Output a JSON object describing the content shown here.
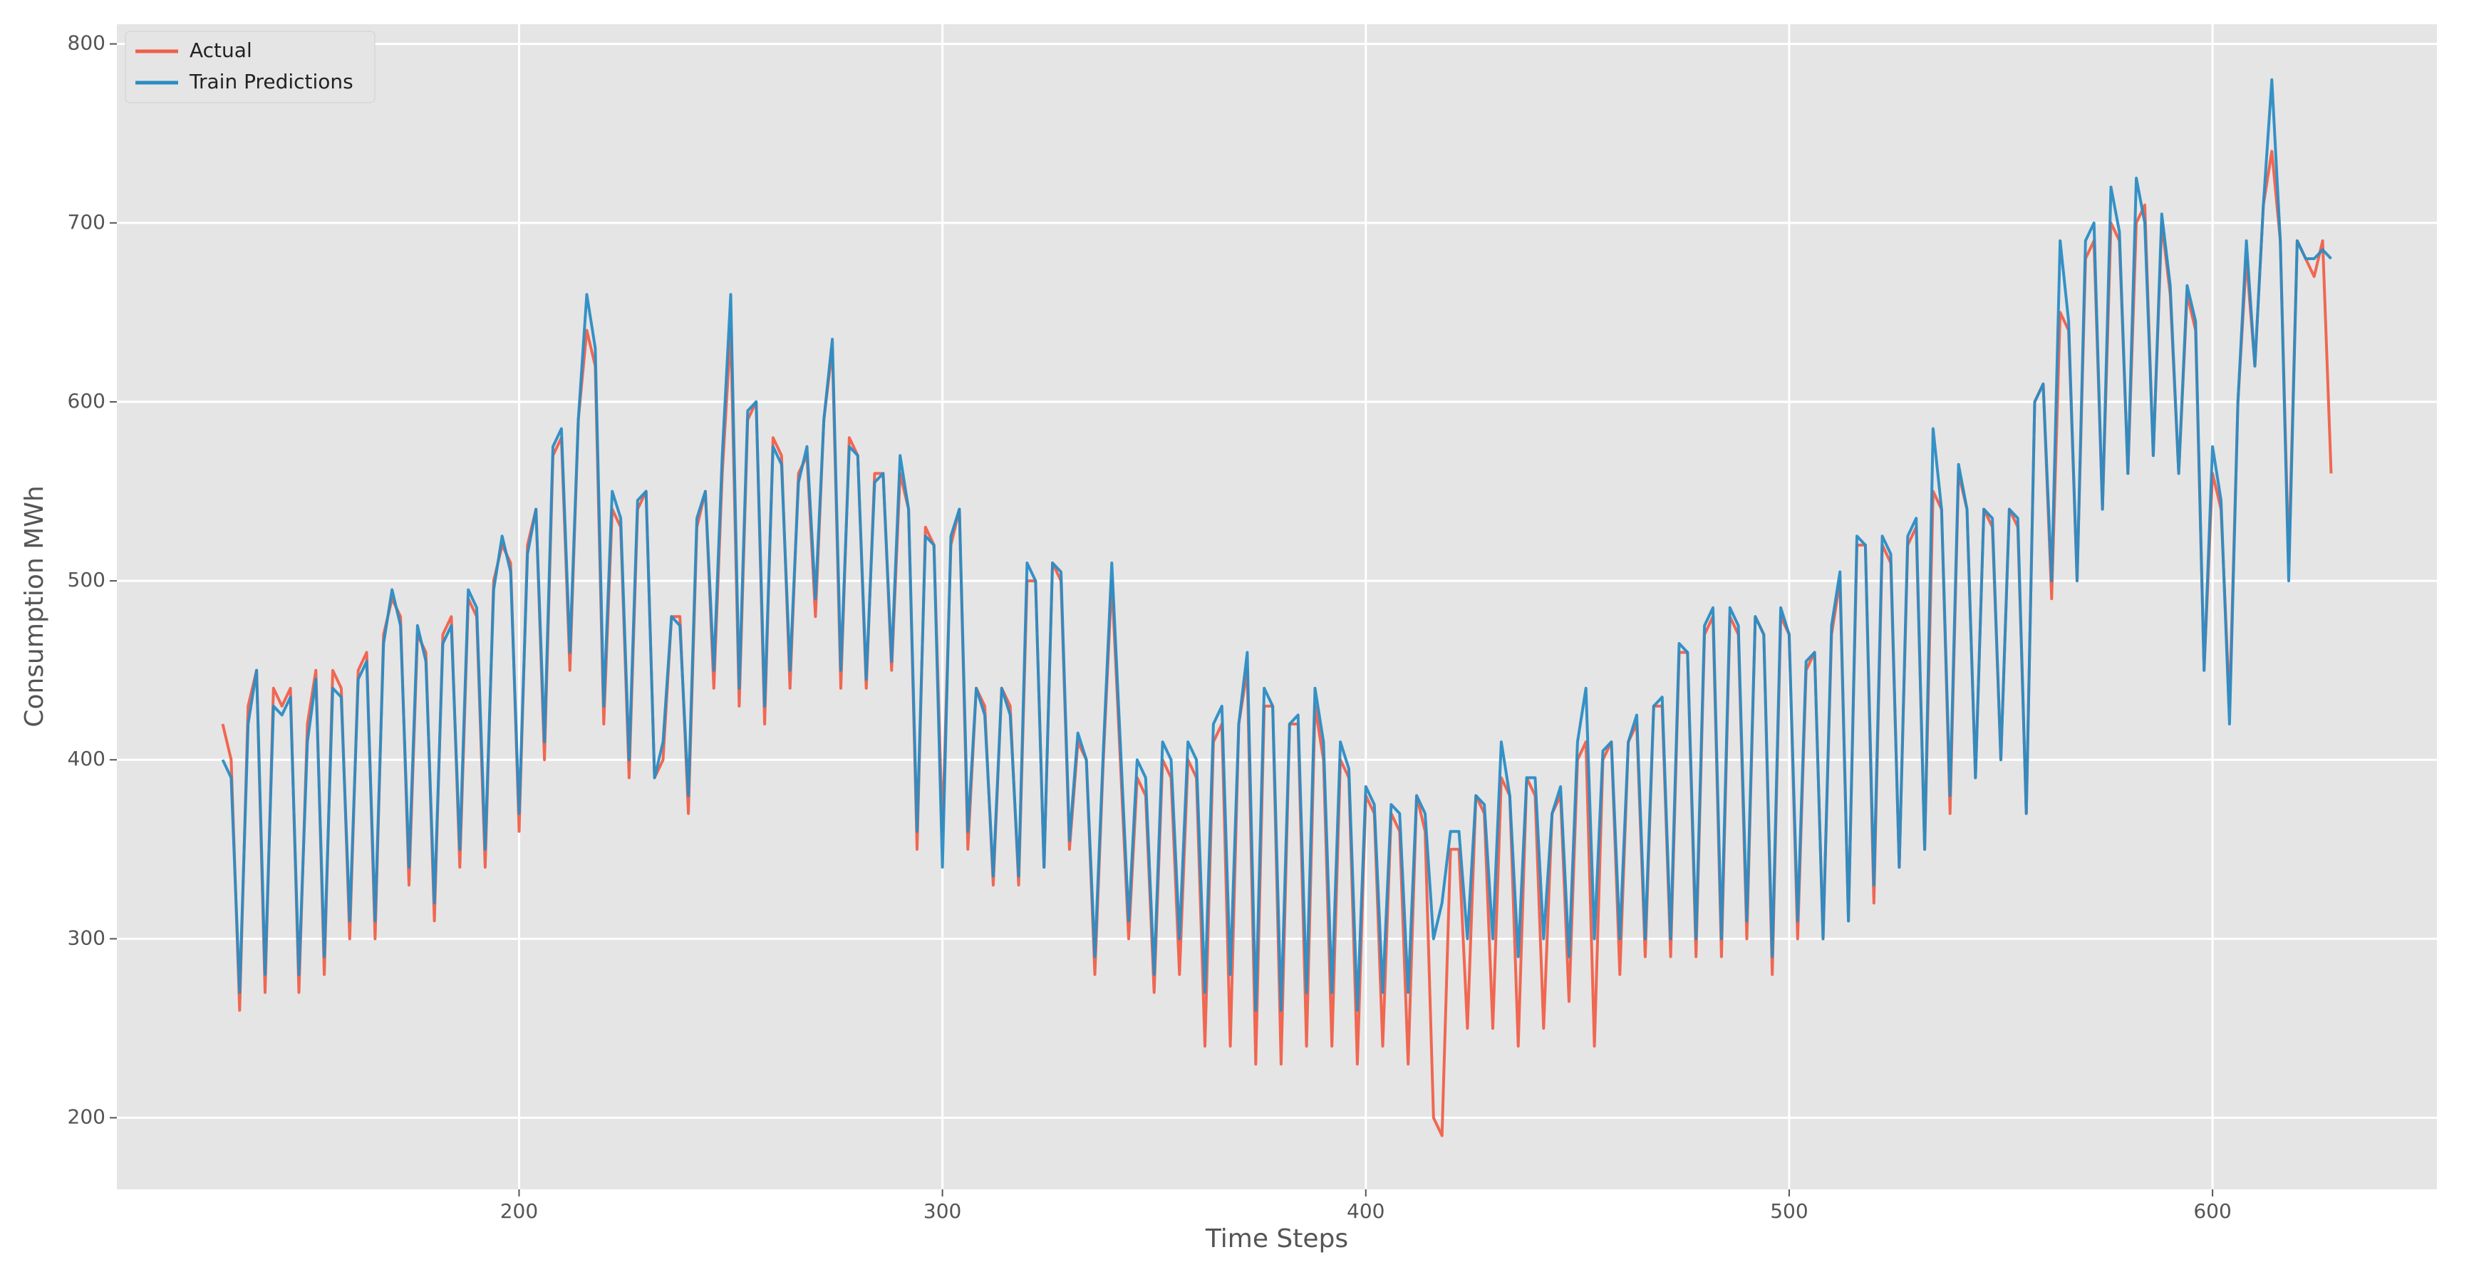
{
  "chart_data": {
    "type": "line",
    "x_label": "Time Steps",
    "y_label": "Consumption MWh",
    "xlim": [
      105,
      653
    ],
    "ylim": [
      160,
      811
    ],
    "xticks": [
      200,
      300,
      400,
      500,
      600
    ],
    "yticks": [
      200,
      300,
      400,
      500,
      600,
      700,
      800
    ],
    "grid": true,
    "legend": "upper left",
    "x": [
      130,
      132,
      134,
      136,
      138,
      140,
      142,
      144,
      146,
      148,
      150,
      152,
      154,
      156,
      158,
      160,
      162,
      164,
      166,
      168,
      170,
      172,
      174,
      176,
      178,
      180,
      182,
      184,
      186,
      188,
      190,
      192,
      194,
      196,
      198,
      200,
      202,
      204,
      206,
      208,
      210,
      212,
      214,
      216,
      218,
      220,
      222,
      224,
      226,
      228,
      230,
      232,
      234,
      236,
      238,
      240,
      242,
      244,
      246,
      248,
      250,
      252,
      254,
      256,
      258,
      260,
      262,
      264,
      266,
      268,
      270,
      272,
      274,
      276,
      278,
      280,
      282,
      284,
      286,
      288,
      290,
      292,
      294,
      296,
      298,
      300,
      302,
      304,
      306,
      308,
      310,
      312,
      314,
      316,
      318,
      320,
      322,
      324,
      326,
      328,
      330,
      332,
      334,
      336,
      338,
      340,
      342,
      344,
      346,
      348,
      350,
      352,
      354,
      356,
      358,
      360,
      362,
      364,
      366,
      368,
      370,
      372,
      374,
      376,
      378,
      380,
      382,
      384,
      386,
      388,
      390,
      392,
      394,
      396,
      398,
      400,
      402,
      404,
      406,
      408,
      410,
      412,
      414,
      416,
      418,
      420,
      422,
      424,
      426,
      428,
      430,
      432,
      434,
      436,
      438,
      440,
      442,
      444,
      446,
      448,
      450,
      452,
      454,
      456,
      458,
      460,
      462,
      464,
      466,
      468,
      470,
      472,
      474,
      476,
      478,
      480,
      482,
      484,
      486,
      488,
      490,
      492,
      494,
      496,
      498,
      500,
      502,
      504,
      506,
      508,
      510,
      512,
      514,
      516,
      518,
      520,
      522,
      524,
      526,
      528,
      530,
      532,
      534,
      536,
      538,
      540,
      542,
      544,
      546,
      548,
      550,
      552,
      554,
      556,
      558,
      560,
      562,
      564,
      566,
      568,
      570,
      572,
      574,
      576,
      578,
      580,
      582,
      584,
      586,
      588,
      590,
      592,
      594,
      596,
      598,
      600,
      602,
      604,
      606,
      608,
      610,
      612,
      614,
      616,
      618,
      620,
      622,
      624,
      626,
      628
    ],
    "series": [
      {
        "name": "Actual",
        "color": "#f0604a",
        "values": [
          420,
          400,
          260,
          430,
          450,
          270,
          440,
          430,
          440,
          270,
          420,
          450,
          280,
          450,
          440,
          300,
          450,
          460,
          300,
          470,
          490,
          480,
          330,
          470,
          460,
          310,
          470,
          480,
          340,
          490,
          480,
          340,
          500,
          520,
          510,
          360,
          520,
          540,
          400,
          570,
          580,
          450,
          590,
          640,
          620,
          420,
          540,
          530,
          390,
          540,
          550,
          390,
          400,
          480,
          480,
          370,
          530,
          550,
          440,
          560,
          640,
          430,
          590,
          600,
          420,
          580,
          570,
          440,
          560,
          570,
          480,
          590,
          630,
          440,
          580,
          570,
          440,
          560,
          560,
          450,
          560,
          540,
          350,
          530,
          520,
          360,
          520,
          540,
          350,
          440,
          430,
          330,
          440,
          430,
          330,
          500,
          500,
          340,
          510,
          500,
          350,
          410,
          400,
          280,
          400,
          500,
          400,
          300,
          390,
          380,
          270,
          400,
          390,
          280,
          400,
          390,
          240,
          410,
          420,
          240,
          420,
          450,
          230,
          430,
          430,
          230,
          420,
          420,
          240,
          430,
          400,
          240,
          400,
          390,
          230,
          380,
          370,
          240,
          370,
          360,
          230,
          380,
          360,
          200,
          190,
          350,
          350,
          250,
          380,
          370,
          250,
          390,
          380,
          240,
          390,
          380,
          250,
          370,
          380,
          265,
          400,
          410,
          240,
          400,
          410,
          280,
          410,
          420,
          290,
          430,
          430,
          290,
          460,
          460,
          290,
          470,
          480,
          290,
          480,
          470,
          300,
          480,
          470,
          280,
          480,
          470,
          300,
          450,
          460,
          300,
          470,
          500,
          310,
          520,
          520,
          320,
          520,
          510,
          340,
          520,
          530,
          350,
          550,
          540,
          370,
          560,
          540,
          390,
          540,
          530,
          400,
          540,
          530,
          370,
          600,
          610,
          490,
          650,
          640,
          500,
          680,
          690,
          540,
          700,
          690,
          560,
          700,
          710,
          570,
          700,
          660,
          560,
          660,
          640,
          450,
          560,
          540,
          430,
          600,
          680,
          620,
          710,
          740,
          690,
          510,
          690,
          680,
          670,
          690,
          560
        ]
      },
      {
        "name": "Train Predictions",
        "color": "#2a8cc4",
        "values": [
          400,
          390,
          270,
          420,
          450,
          280,
          430,
          425,
          435,
          280,
          410,
          445,
          290,
          440,
          435,
          310,
          445,
          455,
          310,
          465,
          495,
          475,
          340,
          475,
          455,
          320,
          465,
          475,
          350,
          495,
          485,
          350,
          495,
          525,
          505,
          370,
          515,
          540,
          410,
          575,
          585,
          460,
          590,
          660,
          630,
          430,
          550,
          535,
          400,
          545,
          550,
          390,
          410,
          480,
          475,
          380,
          535,
          550,
          450,
          570,
          660,
          440,
          595,
          600,
          430,
          575,
          565,
          450,
          555,
          575,
          490,
          590,
          635,
          450,
          575,
          570,
          445,
          555,
          560,
          455,
          570,
          540,
          360,
          525,
          520,
          340,
          525,
          540,
          360,
          440,
          425,
          335,
          440,
          425,
          335,
          510,
          500,
          340,
          510,
          505,
          355,
          415,
          400,
          290,
          405,
          510,
          410,
          310,
          400,
          390,
          280,
          410,
          400,
          300,
          410,
          400,
          270,
          420,
          430,
          280,
          420,
          460,
          260,
          440,
          430,
          260,
          420,
          425,
          270,
          440,
          410,
          270,
          410,
          395,
          260,
          385,
          375,
          270,
          375,
          370,
          270,
          380,
          370,
          300,
          320,
          360,
          360,
          300,
          380,
          375,
          300,
          410,
          380,
          290,
          390,
          390,
          300,
          370,
          385,
          290,
          410,
          440,
          300,
          405,
          410,
          300,
          410,
          425,
          300,
          430,
          435,
          300,
          465,
          460,
          300,
          475,
          485,
          300,
          485,
          475,
          310,
          480,
          470,
          290,
          485,
          470,
          310,
          455,
          460,
          300,
          475,
          505,
          310,
          525,
          520,
          330,
          525,
          515,
          340,
          525,
          535,
          350,
          585,
          540,
          380,
          565,
          540,
          390,
          540,
          535,
          400,
          540,
          535,
          370,
          600,
          610,
          500,
          690,
          645,
          500,
          690,
          700,
          540,
          720,
          695,
          560,
          725,
          700,
          570,
          705,
          665,
          560,
          665,
          645,
          450,
          575,
          545,
          420,
          600,
          690,
          620,
          710,
          780,
          690,
          500,
          690,
          680,
          680,
          685,
          680
        ]
      }
    ]
  }
}
